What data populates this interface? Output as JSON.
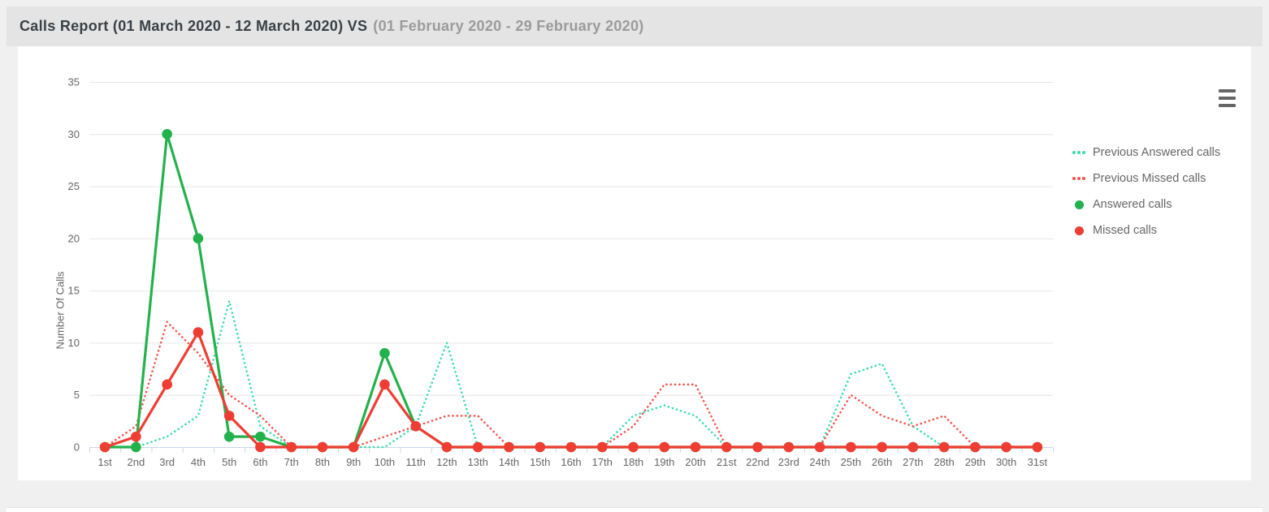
{
  "header": {
    "title_main": "Calls Report (01 March 2020 - 12 March 2020) VS",
    "title_previous": "(01 February 2020 - 29 February 2020)"
  },
  "icons": {
    "context_menu": "hamburger-icon"
  },
  "chart_data": {
    "type": "line",
    "title": "",
    "xlabel": "",
    "ylabel": "Number Of Calls",
    "ylim": [
      0,
      35
    ],
    "yticks": [
      0,
      5,
      10,
      15,
      20,
      25,
      30,
      35
    ],
    "grid": true,
    "legend_position": "right",
    "categories": [
      "1st",
      "2nd",
      "3rd",
      "4th",
      "5th",
      "6th",
      "7th",
      "8th",
      "9th",
      "10th",
      "11th",
      "12th",
      "13th",
      "14th",
      "15th",
      "16th",
      "17th",
      "18th",
      "19th",
      "20th",
      "21st",
      "22nd",
      "23rd",
      "24th",
      "25th",
      "26th",
      "27th",
      "28th",
      "29th",
      "30th",
      "31st"
    ],
    "series": [
      {
        "name": "Previous Answered calls",
        "color": "#3edbb2",
        "style": "dotted",
        "markers": false,
        "values": [
          0,
          0,
          1,
          3,
          14,
          2,
          0,
          0,
          0,
          0,
          2,
          10,
          0,
          0,
          0,
          0,
          0,
          3,
          4,
          3,
          0,
          0,
          0,
          0,
          7,
          8,
          2,
          0,
          0,
          0,
          0
        ]
      },
      {
        "name": "Previous Missed calls",
        "color": "#f4564e",
        "style": "dotted",
        "markers": false,
        "values": [
          0,
          2,
          12,
          9,
          5,
          3,
          0,
          0,
          0,
          1,
          2,
          3,
          3,
          0,
          0,
          0,
          0,
          2,
          6,
          6,
          0,
          0,
          0,
          0,
          5,
          3,
          2,
          3,
          0,
          0,
          0
        ]
      },
      {
        "name": "Answered calls",
        "color": "#23b14c",
        "style": "solid",
        "markers": true,
        "values": [
          0,
          0,
          30,
          20,
          1,
          1,
          0,
          0,
          0,
          9,
          2,
          0,
          0,
          0,
          0,
          0,
          0,
          0,
          0,
          0,
          0,
          0,
          0,
          0,
          0,
          0,
          0,
          0,
          0,
          0,
          0
        ]
      },
      {
        "name": "Missed calls",
        "color": "#ef3d33",
        "style": "solid",
        "markers": true,
        "values": [
          0,
          1,
          6,
          11,
          3,
          0,
          0,
          0,
          0,
          6,
          2,
          0,
          0,
          0,
          0,
          0,
          0,
          0,
          0,
          0,
          0,
          0,
          0,
          0,
          0,
          0,
          0,
          0,
          0,
          0,
          0
        ]
      }
    ],
    "axis_color": "#ccd6eb",
    "grid_color": "#e6e6e6",
    "label_color": "#666666"
  }
}
